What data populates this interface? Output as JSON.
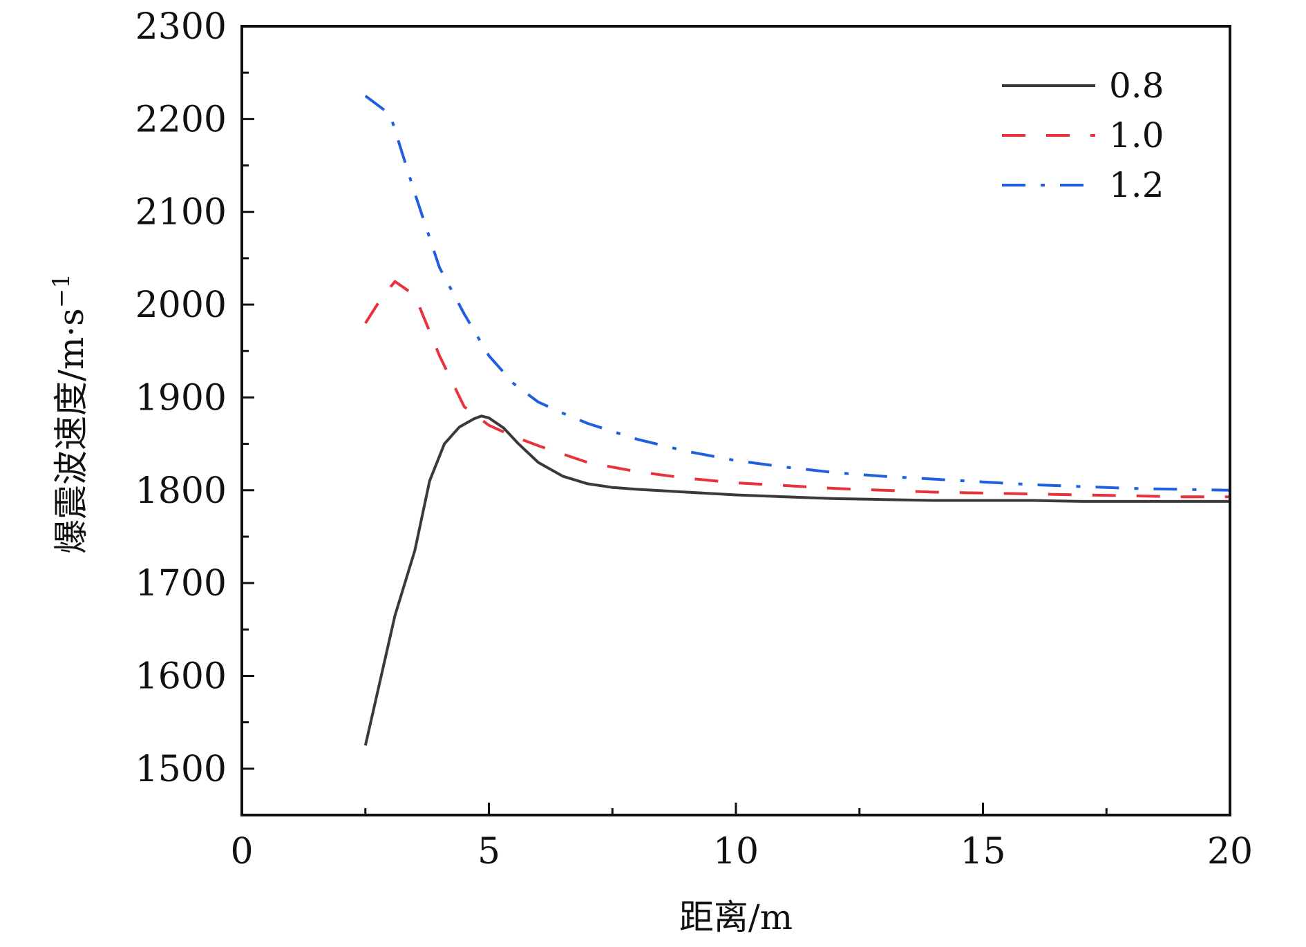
{
  "chart_data": {
    "type": "line",
    "title": "",
    "xlabel": "距离/m",
    "ylabel": "爆震波速度/m·s",
    "ylabel_superscript": "−1",
    "xlim": [
      0,
      20
    ],
    "ylim": [
      1450,
      2300
    ],
    "xticks": [
      0,
      5,
      10,
      15,
      20
    ],
    "yticks": [
      1500,
      1600,
      1700,
      1800,
      1900,
      2000,
      2100,
      2200,
      2300
    ],
    "xtick_labels": [
      "0",
      "5",
      "10",
      "15",
      "20"
    ],
    "ytick_labels": [
      "1500",
      "1600",
      "1700",
      "1800",
      "1900",
      "2000",
      "2100",
      "2200",
      "2300"
    ],
    "grid": false,
    "legend_position": "top-right",
    "series": [
      {
        "name": "0.8",
        "color": "#3a3a3a",
        "dash": "solid",
        "x": [
          2.5,
          2.8,
          3.1,
          3.5,
          3.8,
          4.1,
          4.4,
          4.7,
          4.85,
          5.0,
          5.3,
          5.6,
          6.0,
          6.5,
          7.0,
          7.5,
          8.0,
          9.0,
          10.0,
          11.0,
          12.0,
          13.0,
          14.0,
          15.0,
          16.0,
          17.0,
          18.0,
          19.0,
          20.0
        ],
        "y": [
          1525,
          1595,
          1665,
          1735,
          1810,
          1850,
          1868,
          1877,
          1880,
          1878,
          1867,
          1850,
          1830,
          1815,
          1807,
          1803,
          1801,
          1798,
          1795,
          1793,
          1791,
          1790,
          1789,
          1789,
          1789,
          1788,
          1788,
          1788,
          1788
        ]
      },
      {
        "name": "1.0",
        "color": "#e8323c",
        "dash": "dashed",
        "x": [
          2.5,
          2.8,
          3.1,
          3.5,
          4.0,
          4.5,
          5.0,
          5.5,
          6.0,
          7.0,
          8.0,
          9.0,
          10.0,
          11.0,
          12.0,
          13.0,
          14.0,
          15.0,
          16.0,
          17.0,
          18.0,
          19.0,
          20.0
        ],
        "y": [
          1980,
          2005,
          2025,
          2010,
          1945,
          1890,
          1870,
          1858,
          1848,
          1830,
          1820,
          1813,
          1808,
          1805,
          1802,
          1800,
          1798,
          1797,
          1796,
          1795,
          1794,
          1793,
          1793
        ]
      },
      {
        "name": "1.2",
        "color": "#1f5fe0",
        "dash": "dashdot",
        "x": [
          2.5,
          3.0,
          3.5,
          4.0,
          4.5,
          5.0,
          5.5,
          6.0,
          6.5,
          7.0,
          8.0,
          9.0,
          10.0,
          11.0,
          12.0,
          13.0,
          14.0,
          15.0,
          16.0,
          17.0,
          18.0,
          19.0,
          20.0
        ],
        "y": [
          2225,
          2205,
          2120,
          2040,
          1990,
          1945,
          1915,
          1895,
          1883,
          1872,
          1855,
          1842,
          1832,
          1825,
          1819,
          1815,
          1812,
          1809,
          1806,
          1804,
          1802,
          1801,
          1800
        ]
      }
    ]
  }
}
